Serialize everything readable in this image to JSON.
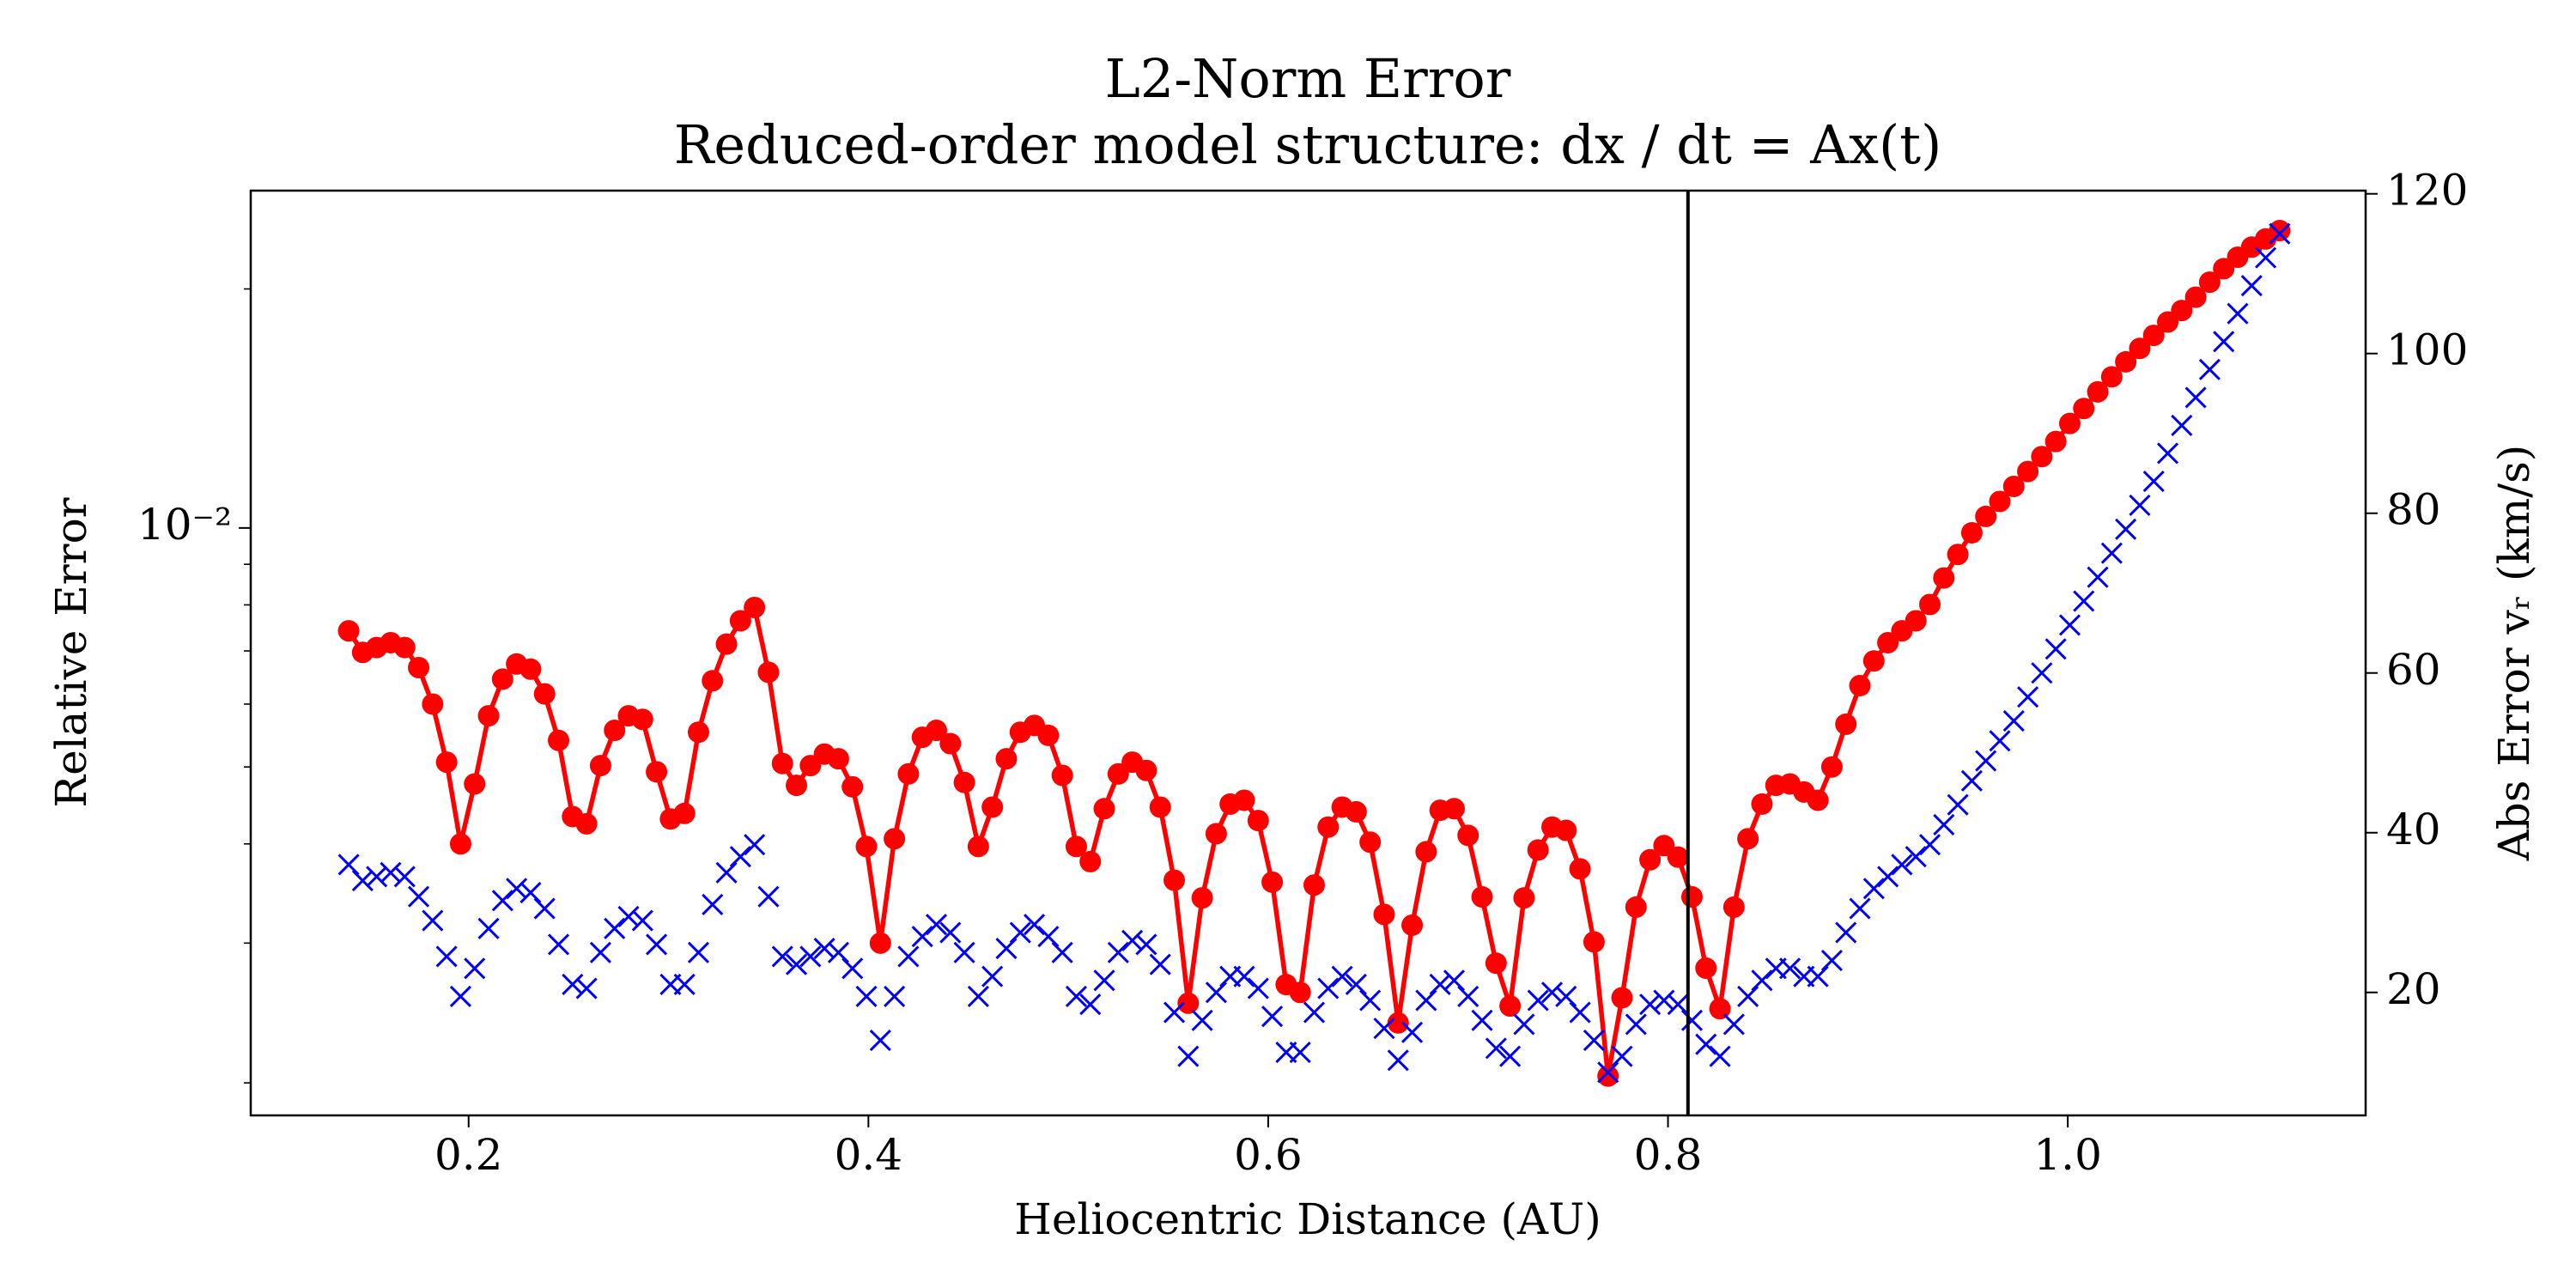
{
  "chart_data": {
    "type": "line",
    "title": "L2-Norm Error",
    "subtitle": "Reduced-order model structure: dx / dt = Ax(t)",
    "xlabel": "Heliocentric Distance (AU)",
    "ylabel": "Relative Error",
    "y2label": "Abs Error vᵣ (km/s)",
    "ylog": true,
    "xlim": [
      0.091,
      1.149
    ],
    "xticks": [
      0.2,
      0.4,
      0.6,
      0.8,
      {
        "value": 1.0,
        "label": "1.0"
      }
    ],
    "ylim": [
      0.00182,
      0.0266
    ],
    "yticks": [
      {
        "value": 0.01,
        "label": "10⁻²"
      }
    ],
    "yminorticks": [
      0.002,
      0.003,
      0.004,
      0.005,
      0.006,
      0.007,
      0.008,
      0.009,
      0.02
    ],
    "y2lim": [
      4.6,
      120.4
    ],
    "y2ticks": [
      20,
      40,
      60,
      80,
      100,
      120
    ],
    "vline": {
      "x": 0.81,
      "color": "#000000"
    },
    "x": [
      0.14,
      0.147,
      0.154,
      0.161,
      0.168,
      0.175,
      0.182,
      0.189,
      0.196,
      0.203,
      0.21,
      0.217,
      0.224,
      0.231,
      0.238,
      0.245,
      0.252,
      0.259,
      0.266,
      0.273,
      0.28,
      0.287,
      0.294,
      0.301,
      0.308,
      0.315,
      0.322,
      0.329,
      0.336,
      0.343,
      0.35,
      0.357,
      0.364,
      0.371,
      0.378,
      0.385,
      0.392,
      0.399,
      0.406,
      0.413,
      0.42,
      0.427,
      0.434,
      0.441,
      0.448,
      0.455,
      0.462,
      0.469,
      0.476,
      0.483,
      0.49,
      0.497,
      0.504,
      0.511,
      0.518,
      0.525,
      0.532,
      0.539,
      0.546,
      0.553,
      0.56,
      0.567,
      0.574,
      0.581,
      0.588,
      0.595,
      0.602,
      0.609,
      0.616,
      0.623,
      0.63,
      0.637,
      0.644,
      0.651,
      0.658,
      0.665,
      0.672,
      0.679,
      0.686,
      0.693,
      0.7,
      0.707,
      0.714,
      0.721,
      0.728,
      0.735,
      0.742,
      0.749,
      0.756,
      0.763,
      0.77,
      0.777,
      0.784,
      0.791,
      0.798,
      0.805,
      0.812,
      0.819,
      0.826,
      0.833,
      0.84,
      0.847,
      0.854,
      0.861,
      0.868,
      0.875,
      0.882,
      0.889,
      0.896,
      0.903,
      0.91,
      0.917,
      0.924,
      0.931,
      0.938,
      0.945,
      0.952,
      0.959,
      0.966,
      0.973,
      0.98,
      0.987,
      0.994,
      1.001,
      1.008,
      1.015,
      1.022,
      1.029,
      1.036,
      1.043,
      1.05,
      1.057,
      1.064,
      1.071,
      1.078,
      1.085,
      1.092,
      1.099,
      1.106
    ],
    "series": [
      {
        "color": "#ff0000",
        "marker": "o",
        "line": true,
        "values": [
          0.00742,
          0.00697,
          0.00707,
          0.00717,
          0.00707,
          0.00667,
          0.006,
          0.00507,
          0.004,
          0.00476,
          0.0058,
          0.00645,
          0.00674,
          0.00664,
          0.00618,
          0.0054,
          0.00433,
          0.00424,
          0.00502,
          0.00556,
          0.0058,
          0.00574,
          0.00493,
          0.0043,
          0.00437,
          0.00553,
          0.00642,
          0.00714,
          0.00764,
          0.00794,
          0.00658,
          0.00505,
          0.00474,
          0.00502,
          0.00519,
          0.00512,
          0.00472,
          0.00397,
          0.003,
          0.00406,
          0.0049,
          0.00545,
          0.00556,
          0.00535,
          0.00478,
          0.00397,
          0.00445,
          0.00512,
          0.00553,
          0.00564,
          0.00548,
          0.00488,
          0.00397,
          0.0038,
          0.00443,
          0.0049,
          0.00507,
          0.00495,
          0.00445,
          0.0036,
          0.00252,
          0.00342,
          0.00412,
          0.00449,
          0.00454,
          0.00428,
          0.00358,
          0.00266,
          0.0026,
          0.00355,
          0.0042,
          0.00445,
          0.00439,
          0.00402,
          0.00326,
          0.00238,
          0.00316,
          0.00391,
          0.00441,
          0.00443,
          0.0041,
          0.00343,
          0.00283,
          0.0025,
          0.00342,
          0.00393,
          0.0042,
          0.00416,
          0.00372,
          0.00301,
          0.00204,
          0.00256,
          0.00333,
          0.00382,
          0.00398,
          0.00385,
          0.00343,
          0.00279,
          0.00248,
          0.00333,
          0.00406,
          0.00449,
          0.00474,
          0.00476,
          0.00465,
          0.00454,
          0.005,
          0.00566,
          0.00633,
          0.0068,
          0.00717,
          0.00742,
          0.00764,
          0.00801,
          0.00865,
          0.00926,
          0.00986,
          0.01034,
          0.0108,
          0.01128,
          0.01178,
          0.0123,
          0.01285,
          0.01354,
          0.01414,
          0.01484,
          0.0155,
          0.01619,
          0.01683,
          0.01748,
          0.01817,
          0.01879,
          0.01953,
          0.0204,
          0.02121,
          0.02193,
          0.02258,
          0.02312,
          0.02369
        ]
      },
      {
        "color": "#0000ff",
        "marker": "x",
        "line": false,
        "axis": "y2",
        "values": [
          36,
          34,
          34.5,
          35,
          34.5,
          32,
          29,
          24.5,
          19.5,
          23,
          28,
          31.5,
          33,
          32.5,
          30.5,
          26,
          21,
          20.5,
          25,
          28,
          29.5,
          29,
          26,
          21,
          21,
          25,
          31,
          35,
          37,
          38.5,
          32,
          24.5,
          23.5,
          24.5,
          25.5,
          25,
          23,
          19.5,
          14,
          19.5,
          24.5,
          27,
          28.5,
          27.5,
          25,
          19.5,
          22,
          25.5,
          27.5,
          28.5,
          27,
          25,
          19.5,
          18.5,
          21.5,
          25,
          26.5,
          26,
          23.5,
          17.5,
          12,
          16.5,
          20,
          22,
          22,
          20.5,
          17,
          12.5,
          12.5,
          17.5,
          20.5,
          22,
          21,
          19,
          15.5,
          11.5,
          15,
          19,
          21,
          21.5,
          19.5,
          16.5,
          13,
          12,
          16,
          19,
          20,
          19.5,
          17.5,
          14,
          10,
          12,
          16,
          18.5,
          19,
          18.5,
          16.5,
          13.5,
          12,
          16,
          19.5,
          21.5,
          23,
          23,
          22,
          22,
          24,
          27.5,
          30.5,
          33,
          34.5,
          36,
          37,
          38.5,
          41,
          43.5,
          46.5,
          49,
          51.5,
          54,
          57,
          60,
          63,
          66,
          69,
          72,
          75,
          78,
          81,
          84,
          87.5,
          91,
          94.5,
          98,
          101.5,
          105,
          108.5,
          112,
          115
        ]
      }
    ]
  }
}
